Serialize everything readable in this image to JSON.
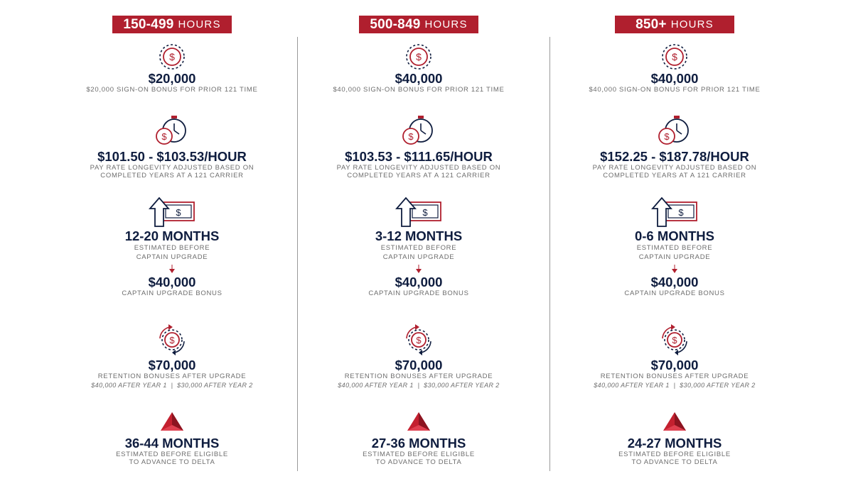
{
  "colors": {
    "red": "#b01f2e",
    "navy": "#0f1d3f",
    "gray": "#6d6d6d"
  },
  "columns": [
    {
      "tier_range": "150-499",
      "tier_unit": "HOURS",
      "signon_amount": "$20,000",
      "signon_label": "$20,000 SIGN-ON BONUS FOR PRIOR 121 TIME",
      "pay_rate": "$101.50 - $103.53/HOUR",
      "pay_line1": "PAY RATE LONGEVITY ADJUSTED BASED ON",
      "pay_line2": "COMPLETED YEARS AT A 121 CARRIER",
      "upgrade_months": "12-20 MONTHS",
      "upgrade_line1": "ESTIMATED BEFORE",
      "upgrade_line2": "CAPTAIN UPGRADE",
      "captain_bonus": "$40,000",
      "captain_bonus_label": "CAPTAIN UPGRADE BONUS",
      "retention_amount": "$70,000",
      "retention_label": "RETENTION BONUSES AFTER UPGRADE",
      "retention_detail": "$40,000 AFTER YEAR 1  |  $30,000 AFTER YEAR 2",
      "delta_months": "36-44 MONTHS",
      "delta_line1": "ESTIMATED BEFORE ELIGIBLE",
      "delta_line2": "TO ADVANCE TO DELTA"
    },
    {
      "tier_range": "500-849",
      "tier_unit": "HOURS",
      "signon_amount": "$40,000",
      "signon_label": "$40,000 SIGN-ON BONUS FOR PRIOR 121 TIME",
      "pay_rate": "$103.53 - $111.65/HOUR",
      "pay_line1": "PAY RATE LONGEVITY ADJUSTED BASED ON",
      "pay_line2": "COMPLETED YEARS AT A 121 CARRIER",
      "upgrade_months": "3-12 MONTHS",
      "upgrade_line1": "ESTIMATED BEFORE",
      "upgrade_line2": "CAPTAIN UPGRADE",
      "captain_bonus": "$40,000",
      "captain_bonus_label": "CAPTAIN UPGRADE BONUS",
      "retention_amount": "$70,000",
      "retention_label": "RETENTION BONUSES AFTER UPGRADE",
      "retention_detail": "$40,000 AFTER YEAR 1  |  $30,000 AFTER YEAR 2",
      "delta_months": "27-36 MONTHS",
      "delta_line1": "ESTIMATED BEFORE ELIGIBLE",
      "delta_line2": "TO ADVANCE TO DELTA"
    },
    {
      "tier_range": "850+",
      "tier_unit": "HOURS",
      "signon_amount": "$40,000",
      "signon_label": "$40,000 SIGN-ON BONUS FOR PRIOR 121 TIME",
      "pay_rate": "$152.25 - $187.78/HOUR",
      "pay_line1": "PAY RATE LONGEVITY ADJUSTED BASED ON",
      "pay_line2": "COMPLETED YEARS AT A 121 CARRIER",
      "upgrade_months": "0-6 MONTHS",
      "upgrade_line1": "ESTIMATED BEFORE",
      "upgrade_line2": "CAPTAIN UPGRADE",
      "captain_bonus": "$40,000",
      "captain_bonus_label": "CAPTAIN UPGRADE BONUS",
      "retention_amount": "$70,000",
      "retention_label": "RETENTION BONUSES AFTER UPGRADE",
      "retention_detail": "$40,000 AFTER YEAR 1  |  $30,000 AFTER YEAR 2",
      "delta_months": "24-27 MONTHS",
      "delta_line1": "ESTIMATED BEFORE ELIGIBLE",
      "delta_line2": "TO ADVANCE TO DELTA"
    }
  ]
}
